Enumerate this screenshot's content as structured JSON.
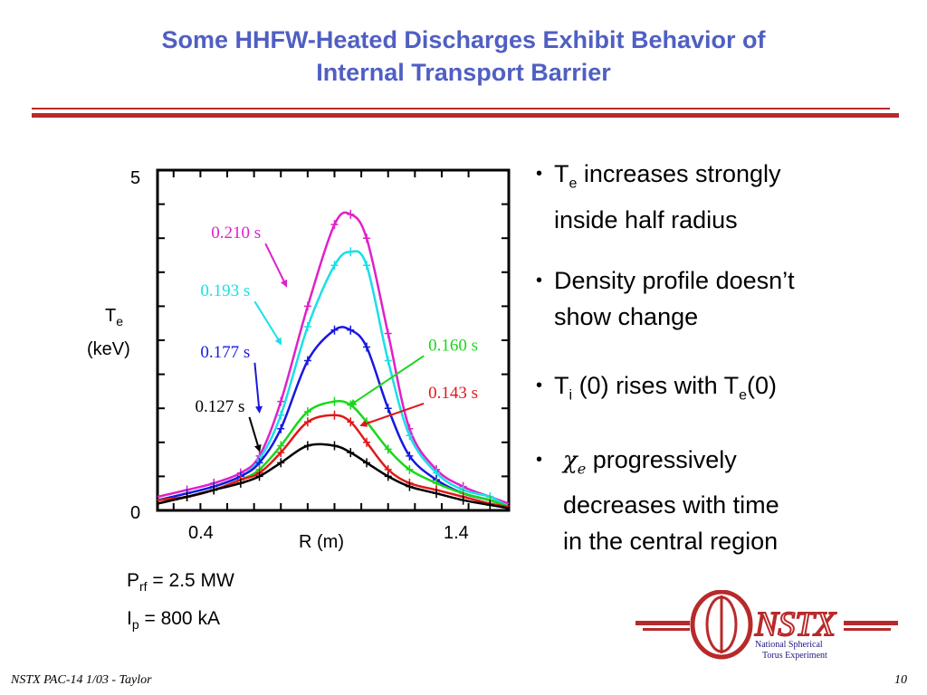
{
  "slide": {
    "title_line1": "Some HHFW-Heated Discharges Exhibit Behavior of",
    "title_line2": "Internal Transport Barrier",
    "footer_left": "NSTX PAC-14 1/03 - Taylor",
    "page_number": "10",
    "accent_color": "#4f5fc3",
    "rule_color": "#b82a2a"
  },
  "bullets": [
    {
      "pre": "T",
      "sub": "e",
      "post": " increases strongly",
      "line2": "inside half radius"
    },
    {
      "text": "Density profile doesn’t",
      "line2": "show change"
    },
    {
      "a": "T",
      "a_sub": "i",
      "b": " (0) rises with T",
      "b_sub": "e",
      "c": "(0)"
    },
    {
      "symbol": "χ",
      "symbol_sub": "e",
      "text": " progressively",
      "line2": "decreases with time",
      "line3": "in the central region"
    }
  ],
  "params": {
    "prf_label": "P",
    "prf_sub": "rf",
    "prf_value": " = 2.5 MW",
    "ip_label": "I",
    "ip_sub": "p",
    "ip_value": " = 800 kA"
  },
  "logo": {
    "text": "NSTX",
    "line1": "National Spherical",
    "line2": "Torus Experiment"
  },
  "chart_data": {
    "type": "line",
    "xlabel": "R (m)",
    "ylabel": "T",
    "ylabel_sub": "e",
    "ylabel_unit": "(keV)",
    "xlim": [
      0.24,
      1.55
    ],
    "ylim": [
      0,
      5
    ],
    "x_ticklabels": [
      "0.4",
      "1.4"
    ],
    "x_tick_values": [
      0.4,
      1.4
    ],
    "y_ticklabels": [
      "0",
      "5"
    ],
    "y_tick_values": [
      0,
      5
    ],
    "x": [
      0.24,
      0.35,
      0.45,
      0.55,
      0.62,
      0.7,
      0.8,
      0.9,
      0.96,
      1.02,
      1.1,
      1.18,
      1.28,
      1.38,
      1.48,
      1.55
    ],
    "series": [
      {
        "name": "0.210 s",
        "color": "#e020c8",
        "values": [
          0.2,
          0.3,
          0.4,
          0.55,
          0.8,
          1.6,
          3.0,
          4.2,
          4.35,
          4.0,
          2.6,
          1.2,
          0.6,
          0.35,
          0.2,
          0.1
        ]
      },
      {
        "name": "0.193 s",
        "color": "#18e0e8",
        "values": [
          0.15,
          0.25,
          0.35,
          0.5,
          0.75,
          1.4,
          2.7,
          3.6,
          3.8,
          3.6,
          2.2,
          1.1,
          0.55,
          0.3,
          0.2,
          0.05
        ]
      },
      {
        "name": "0.177 s",
        "color": "#1818e0",
        "values": [
          0.15,
          0.25,
          0.35,
          0.5,
          0.7,
          1.2,
          2.2,
          2.65,
          2.65,
          2.4,
          1.5,
          0.8,
          0.45,
          0.25,
          0.15,
          0.05
        ]
      },
      {
        "name": "0.160 s",
        "color": "#18d818",
        "values": [
          0.15,
          0.2,
          0.3,
          0.45,
          0.6,
          0.95,
          1.45,
          1.6,
          1.55,
          1.3,
          0.9,
          0.6,
          0.4,
          0.25,
          0.15,
          0.05
        ]
      },
      {
        "name": "0.143 s",
        "color": "#e01818",
        "values": [
          0.15,
          0.2,
          0.3,
          0.45,
          0.55,
          0.85,
          1.3,
          1.4,
          1.3,
          1.0,
          0.6,
          0.4,
          0.3,
          0.2,
          0.1,
          0.05
        ]
      },
      {
        "name": "0.127 s",
        "color": "#000000",
        "values": [
          0.1,
          0.2,
          0.3,
          0.4,
          0.5,
          0.7,
          0.95,
          0.95,
          0.85,
          0.7,
          0.5,
          0.35,
          0.25,
          0.15,
          0.08,
          0.03
        ]
      }
    ],
    "labels": [
      {
        "text": "0.210 s",
        "color": "#e020c8",
        "label_x": 0.44,
        "label_y": 4.0,
        "arrow_x": 0.72,
        "arrow_y": 3.3
      },
      {
        "text": "0.193 s",
        "color": "#18e0e8",
        "label_x": 0.4,
        "label_y": 3.15,
        "arrow_x": 0.7,
        "arrow_y": 2.45
      },
      {
        "text": "0.177 s",
        "color": "#1818e0",
        "label_x": 0.4,
        "label_y": 2.25,
        "arrow_x": 0.62,
        "arrow_y": 1.45
      },
      {
        "text": "0.160 s",
        "color": "#18d818",
        "label_x": 1.25,
        "label_y": 2.35,
        "arrow_x": 0.96,
        "arrow_y": 1.55
      },
      {
        "text": "0.143 s",
        "color": "#e01818",
        "label_x": 1.25,
        "label_y": 1.65,
        "arrow_x": 1.0,
        "arrow_y": 1.25
      },
      {
        "text": "0.127 s",
        "color": "#000000",
        "label_x": 0.38,
        "label_y": 1.45,
        "arrow_x": 0.62,
        "arrow_y": 0.88
      }
    ]
  }
}
